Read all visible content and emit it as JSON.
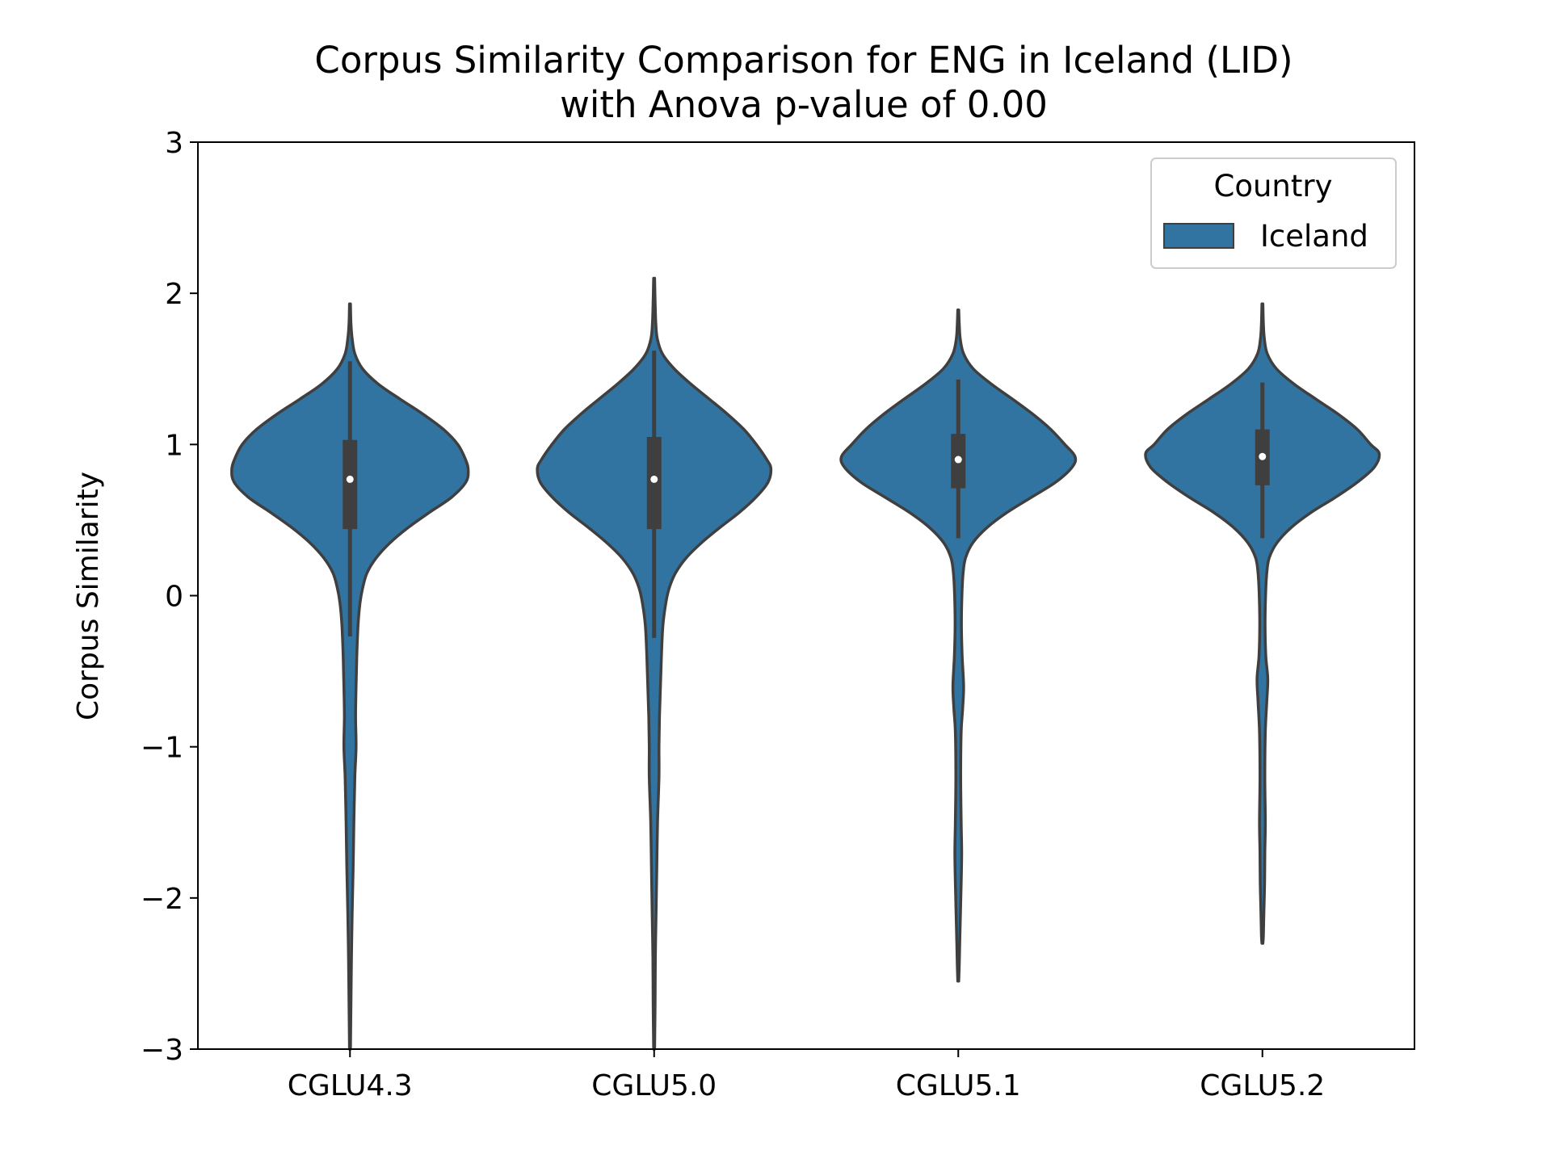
{
  "chart_data": {
    "type": "violin",
    "title": [
      "Corpus Similarity Comparison for ENG in Iceland (LID)",
      "with Anova p-value of 0.00"
    ],
    "xlabel": "",
    "ylabel": "Corpus Similarity",
    "ylim": [
      -3,
      3
    ],
    "yticks": [
      3,
      2,
      1,
      0,
      -1,
      -2,
      -3
    ],
    "ytick_labels": [
      "3",
      "2",
      "1",
      "0",
      "−1",
      "−2",
      "−3"
    ],
    "categories": [
      "CGLU4.3",
      "CGLU5.0",
      "CGLU5.1",
      "CGLU5.2"
    ],
    "legend": {
      "title": "Country",
      "entries": [
        "Iceland"
      ],
      "placement": "top-right"
    },
    "colors": {
      "fill": "#3274a1",
      "edge": "#3f3f3f",
      "box": "#3f3f3f",
      "median": "#ffffff"
    },
    "series": [
      {
        "name": "Iceland",
        "violins": [
          {
            "category": "CGLU4.3",
            "median": 0.77,
            "q1": 0.44,
            "q3": 1.03,
            "whisker_low": -0.27,
            "whisker_high": 1.55,
            "profile": [
              [
                1.93,
                0.002
              ],
              [
                1.8,
                0.004
              ],
              [
                1.7,
                0.009
              ],
              [
                1.6,
                0.02
              ],
              [
                1.5,
                0.052
              ],
              [
                1.4,
                0.116
              ],
              [
                1.3,
                0.206
              ],
              [
                1.2,
                0.301
              ],
              [
                1.1,
                0.384
              ],
              [
                1.0,
                0.443
              ],
              [
                0.9,
                0.475
              ],
              [
                0.83,
                0.486
              ],
              [
                0.75,
                0.476
              ],
              [
                0.65,
                0.417
              ],
              [
                0.55,
                0.326
              ],
              [
                0.45,
                0.239
              ],
              [
                0.35,
                0.165
              ],
              [
                0.25,
                0.108
              ],
              [
                0.15,
                0.07
              ],
              [
                0.05,
                0.052
              ],
              [
                -0.05,
                0.041
              ],
              [
                -0.2,
                0.033
              ],
              [
                -0.4,
                0.028
              ],
              [
                -0.6,
                0.025
              ],
              [
                -0.8,
                0.023
              ],
              [
                -1.0,
                0.025
              ],
              [
                -1.2,
                0.02
              ],
              [
                -1.5,
                0.016
              ],
              [
                -1.8,
                0.013
              ],
              [
                -2.1,
                0.009
              ],
              [
                -2.4,
                0.006
              ],
              [
                -2.7,
                0.004
              ],
              [
                -3.0,
                0.002
              ]
            ]
          },
          {
            "category": "CGLU5.0",
            "median": 0.77,
            "q1": 0.44,
            "q3": 1.05,
            "whisker_low": -0.28,
            "whisker_high": 1.62,
            "profile": [
              [
                2.1,
                0.002
              ],
              [
                1.95,
                0.004
              ],
              [
                1.8,
                0.007
              ],
              [
                1.7,
                0.013
              ],
              [
                1.6,
                0.034
              ],
              [
                1.5,
                0.083
              ],
              [
                1.4,
                0.151
              ],
              [
                1.3,
                0.227
              ],
              [
                1.2,
                0.302
              ],
              [
                1.1,
                0.369
              ],
              [
                1.0,
                0.42
              ],
              [
                0.9,
                0.463
              ],
              [
                0.84,
                0.48
              ],
              [
                0.75,
                0.468
              ],
              [
                0.65,
                0.418
              ],
              [
                0.55,
                0.35
              ],
              [
                0.45,
                0.27
              ],
              [
                0.35,
                0.195
              ],
              [
                0.25,
                0.132
              ],
              [
                0.15,
                0.088
              ],
              [
                0.05,
                0.062
              ],
              [
                -0.05,
                0.048
              ],
              [
                -0.2,
                0.036
              ],
              [
                -0.4,
                0.03
              ],
              [
                -0.6,
                0.026
              ],
              [
                -0.8,
                0.022
              ],
              [
                -1.0,
                0.02
              ],
              [
                -1.2,
                0.02
              ],
              [
                -1.5,
                0.014
              ],
              [
                -1.8,
                0.011
              ],
              [
                -2.1,
                0.008
              ],
              [
                -2.4,
                0.005
              ],
              [
                -2.7,
                0.004
              ],
              [
                -3.0,
                0.002
              ]
            ]
          },
          {
            "category": "CGLU5.1",
            "median": 0.9,
            "q1": 0.71,
            "q3": 1.07,
            "whisker_low": 0.38,
            "whisker_high": 1.43,
            "profile": [
              [
                1.89,
                0.002
              ],
              [
                1.8,
                0.004
              ],
              [
                1.7,
                0.008
              ],
              [
                1.6,
                0.022
              ],
              [
                1.5,
                0.062
              ],
              [
                1.4,
                0.136
              ],
              [
                1.3,
                0.223
              ],
              [
                1.2,
                0.307
              ],
              [
                1.1,
                0.38
              ],
              [
                1.0,
                0.438
              ],
              [
                0.92,
                0.48
              ],
              [
                0.85,
                0.468
              ],
              [
                0.75,
                0.4
              ],
              [
                0.65,
                0.3
              ],
              [
                0.55,
                0.2
              ],
              [
                0.45,
                0.118
              ],
              [
                0.35,
                0.06
              ],
              [
                0.25,
                0.03
              ],
              [
                0.15,
                0.02
              ],
              [
                0.0,
                0.015
              ],
              [
                -0.2,
                0.013
              ],
              [
                -0.4,
                0.016
              ],
              [
                -0.6,
                0.022
              ],
              [
                -0.75,
                0.018
              ],
              [
                -0.9,
                0.012
              ],
              [
                -1.2,
                0.01
              ],
              [
                -1.5,
                0.012
              ],
              [
                -1.7,
                0.014
              ],
              [
                -1.9,
                0.012
              ],
              [
                -2.1,
                0.009
              ],
              [
                -2.3,
                0.006
              ],
              [
                -2.45,
                0.004
              ],
              [
                -2.55,
                0.002
              ]
            ]
          },
          {
            "category": "CGLU5.2",
            "median": 0.92,
            "q1": 0.73,
            "q3": 1.1,
            "whisker_low": 0.38,
            "whisker_high": 1.41,
            "profile": [
              [
                1.93,
                0.002
              ],
              [
                1.8,
                0.004
              ],
              [
                1.7,
                0.008
              ],
              [
                1.6,
                0.02
              ],
              [
                1.5,
                0.058
              ],
              [
                1.4,
                0.13
              ],
              [
                1.3,
                0.22
              ],
              [
                1.2,
                0.312
              ],
              [
                1.1,
                0.39
              ],
              [
                1.0,
                0.445
              ],
              [
                0.94,
                0.48
              ],
              [
                0.85,
                0.46
              ],
              [
                0.75,
                0.39
              ],
              [
                0.65,
                0.3
              ],
              [
                0.55,
                0.2
              ],
              [
                0.45,
                0.118
              ],
              [
                0.35,
                0.06
              ],
              [
                0.25,
                0.028
              ],
              [
                0.15,
                0.018
              ],
              [
                0.0,
                0.013
              ],
              [
                -0.2,
                0.011
              ],
              [
                -0.4,
                0.014
              ],
              [
                -0.55,
                0.022
              ],
              [
                -0.7,
                0.018
              ],
              [
                -0.9,
                0.012
              ],
              [
                -1.2,
                0.01
              ],
              [
                -1.5,
                0.012
              ],
              [
                -1.7,
                0.01
              ],
              [
                -1.9,
                0.009
              ],
              [
                -2.1,
                0.006
              ],
              [
                -2.25,
                0.004
              ],
              [
                -2.3,
                0.002
              ]
            ]
          }
        ]
      }
    ]
  }
}
